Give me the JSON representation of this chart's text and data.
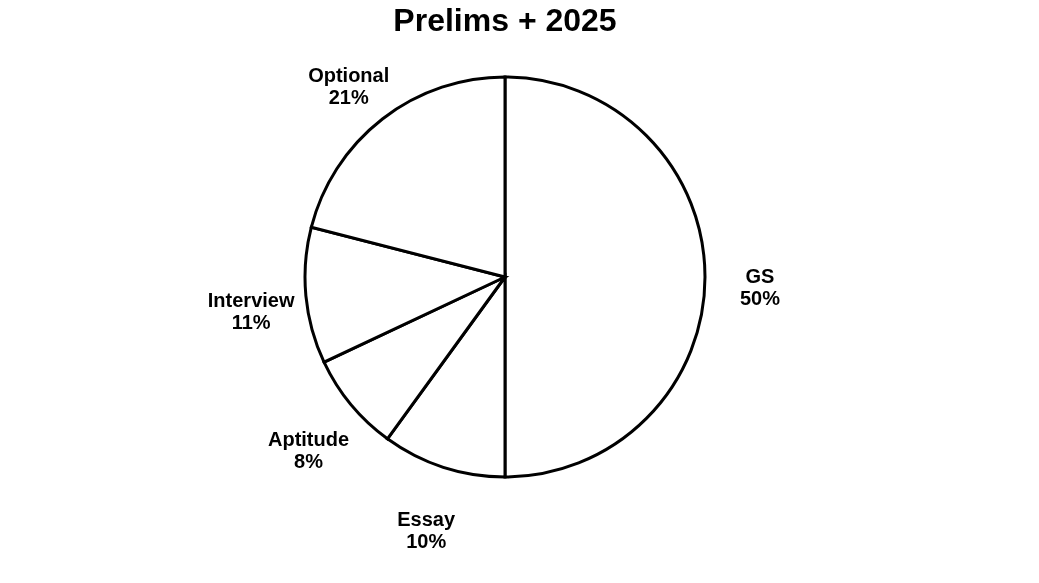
{
  "chart_data": {
    "type": "pie",
    "title": "Prelims + 2025",
    "categories": [
      "GS",
      "Essay",
      "Aptitude",
      "Interview",
      "Optional"
    ],
    "values": [
      50,
      10,
      8,
      11,
      21
    ],
    "colors": [
      "#ffffff",
      "#ffffff",
      "#ffffff",
      "#ffffff",
      "#ffffff"
    ],
    "value_labels": [
      "50%",
      "10%",
      "8%",
      "11%",
      "21%"
    ],
    "legend": false
  }
}
